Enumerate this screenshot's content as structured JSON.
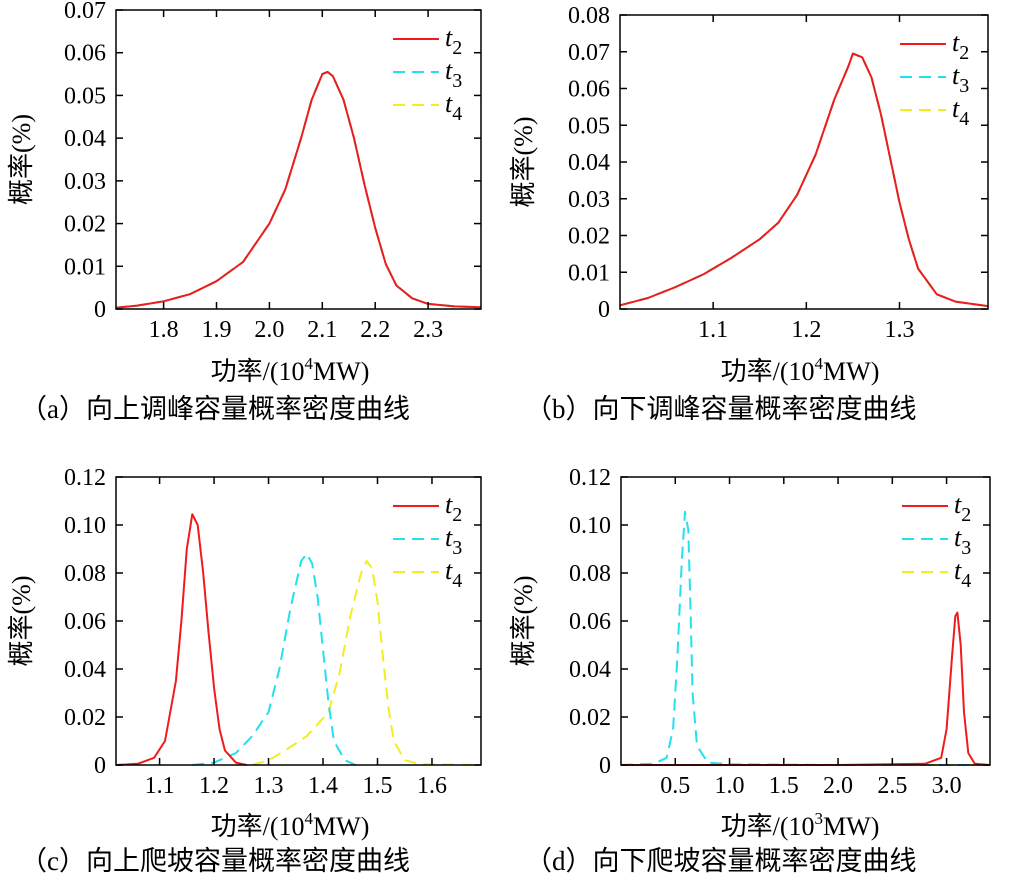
{
  "colors": {
    "t2": "#ee1c1c",
    "t3": "#22e0ee",
    "t4": "#f0ee22"
  },
  "chart_data": [
    {
      "type": "line",
      "title": "",
      "caption": "（a）向上调峰容量概率密度曲线",
      "xlabel": "功率/(10",
      "xlabel_sup": "4",
      "xlabel_end": "MW)",
      "ylabel": "概率(%)",
      "xlim": [
        1.71,
        2.4
      ],
      "ylim": [
        0,
        0.07
      ],
      "xticks": [
        1.8,
        1.9,
        2.0,
        2.1,
        2.2,
        2.3
      ],
      "xtick_labels": [
        "1.8",
        "1.9",
        "2.0",
        "2.1",
        "2.2",
        "2.3"
      ],
      "yticks": [
        0,
        0.01,
        0.02,
        0.03,
        0.04,
        0.05,
        0.06,
        0.07
      ],
      "ytick_labels": [
        "0",
        "0.01",
        "0.02",
        "0.03",
        "0.04",
        "0.05",
        "0.06",
        "0.07"
      ],
      "legend": [
        "t2",
        "t3",
        "t4"
      ],
      "series": [
        {
          "name": "t4",
          "points": [
            [
              1.71,
              0.0003
            ],
            [
              1.75,
              0.0008
            ],
            [
              1.8,
              0.0018
            ],
            [
              1.85,
              0.0035
            ],
            [
              1.9,
              0.0065
            ],
            [
              1.95,
              0.011
            ],
            [
              2.0,
              0.02
            ],
            [
              2.03,
              0.028
            ],
            [
              2.06,
              0.04
            ],
            [
              2.08,
              0.049
            ],
            [
              2.1,
              0.055
            ],
            [
              2.11,
              0.0555
            ],
            [
              2.12,
              0.0545
            ],
            [
              2.14,
              0.049
            ],
            [
              2.16,
              0.04
            ],
            [
              2.18,
              0.029
            ],
            [
              2.2,
              0.019
            ],
            [
              2.22,
              0.0105
            ],
            [
              2.24,
              0.0055
            ],
            [
              2.27,
              0.0025
            ],
            [
              2.3,
              0.0012
            ],
            [
              2.35,
              0.0006
            ],
            [
              2.4,
              0.0004
            ]
          ]
        },
        {
          "name": "t3",
          "points": [
            [
              1.71,
              0.0003
            ],
            [
              1.75,
              0.0008
            ],
            [
              1.8,
              0.0018
            ],
            [
              1.85,
              0.0035
            ],
            [
              1.9,
              0.0065
            ],
            [
              1.95,
              0.011
            ],
            [
              2.0,
              0.02
            ],
            [
              2.03,
              0.028
            ],
            [
              2.06,
              0.04
            ],
            [
              2.08,
              0.049
            ],
            [
              2.1,
              0.055
            ],
            [
              2.11,
              0.0555
            ],
            [
              2.12,
              0.0545
            ],
            [
              2.14,
              0.049
            ],
            [
              2.16,
              0.04
            ],
            [
              2.18,
              0.029
            ],
            [
              2.2,
              0.019
            ],
            [
              2.22,
              0.0105
            ],
            [
              2.24,
              0.0055
            ],
            [
              2.27,
              0.0025
            ],
            [
              2.3,
              0.0012
            ],
            [
              2.35,
              0.0006
            ],
            [
              2.4,
              0.0004
            ]
          ]
        },
        {
          "name": "t2",
          "points": [
            [
              1.71,
              0.0003
            ],
            [
              1.75,
              0.0008
            ],
            [
              1.8,
              0.0018
            ],
            [
              1.85,
              0.0035
            ],
            [
              1.9,
              0.0065
            ],
            [
              1.95,
              0.011
            ],
            [
              2.0,
              0.02
            ],
            [
              2.03,
              0.028
            ],
            [
              2.06,
              0.04
            ],
            [
              2.08,
              0.049
            ],
            [
              2.1,
              0.055
            ],
            [
              2.11,
              0.0555
            ],
            [
              2.12,
              0.0545
            ],
            [
              2.14,
              0.049
            ],
            [
              2.16,
              0.04
            ],
            [
              2.18,
              0.029
            ],
            [
              2.2,
              0.019
            ],
            [
              2.22,
              0.0105
            ],
            [
              2.24,
              0.0055
            ],
            [
              2.27,
              0.0025
            ],
            [
              2.3,
              0.0012
            ],
            [
              2.35,
              0.0006
            ],
            [
              2.4,
              0.0004
            ]
          ]
        }
      ]
    },
    {
      "type": "line",
      "title": "",
      "caption": "（b）向下调峰容量概率密度曲线",
      "xlabel": "功率/(10",
      "xlabel_sup": "4",
      "xlabel_end": "MW)",
      "ylabel": "概率(%)",
      "xlim": [
        1.0,
        1.395
      ],
      "ylim": [
        0,
        0.08
      ],
      "xticks": [
        1.1,
        1.2,
        1.3
      ],
      "xtick_labels": [
        "1.1",
        "1.2",
        "1.3"
      ],
      "yticks": [
        0,
        0.01,
        0.02,
        0.03,
        0.04,
        0.05,
        0.06,
        0.07,
        0.08
      ],
      "ytick_labels": [
        "0",
        "0.01",
        "0.02",
        "0.03",
        "0.04",
        "0.05",
        "0.06",
        "0.07",
        "0.08"
      ],
      "legend": [
        "t2",
        "t3",
        "t4"
      ],
      "series": [
        {
          "name": "t4",
          "points": [
            [
              1.0,
              0.001
            ],
            [
              1.03,
              0.003
            ],
            [
              1.06,
              0.006
            ],
            [
              1.09,
              0.0095
            ],
            [
              1.12,
              0.014
            ],
            [
              1.15,
              0.019
            ],
            [
              1.17,
              0.0235
            ],
            [
              1.19,
              0.031
            ],
            [
              1.21,
              0.042
            ],
            [
              1.23,
              0.057
            ],
            [
              1.245,
              0.066
            ],
            [
              1.25,
              0.0695
            ],
            [
              1.26,
              0.0685
            ],
            [
              1.27,
              0.063
            ],
            [
              1.28,
              0.053
            ],
            [
              1.29,
              0.041
            ],
            [
              1.3,
              0.029
            ],
            [
              1.31,
              0.019
            ],
            [
              1.32,
              0.011
            ],
            [
              1.34,
              0.004
            ],
            [
              1.36,
              0.002
            ],
            [
              1.395,
              0.0008
            ]
          ]
        },
        {
          "name": "t3",
          "points": [
            [
              1.0,
              0.001
            ],
            [
              1.03,
              0.003
            ],
            [
              1.06,
              0.006
            ],
            [
              1.09,
              0.0095
            ],
            [
              1.12,
              0.014
            ],
            [
              1.15,
              0.019
            ],
            [
              1.17,
              0.0235
            ],
            [
              1.19,
              0.031
            ],
            [
              1.21,
              0.042
            ],
            [
              1.23,
              0.057
            ],
            [
              1.245,
              0.066
            ],
            [
              1.25,
              0.0695
            ],
            [
              1.26,
              0.0685
            ],
            [
              1.27,
              0.063
            ],
            [
              1.28,
              0.053
            ],
            [
              1.29,
              0.041
            ],
            [
              1.3,
              0.029
            ],
            [
              1.31,
              0.019
            ],
            [
              1.32,
              0.011
            ],
            [
              1.34,
              0.004
            ],
            [
              1.36,
              0.002
            ],
            [
              1.395,
              0.0008
            ]
          ]
        },
        {
          "name": "t2",
          "points": [
            [
              1.0,
              0.001
            ],
            [
              1.03,
              0.003
            ],
            [
              1.06,
              0.006
            ],
            [
              1.09,
              0.0095
            ],
            [
              1.12,
              0.014
            ],
            [
              1.15,
              0.019
            ],
            [
              1.17,
              0.0235
            ],
            [
              1.19,
              0.031
            ],
            [
              1.21,
              0.042
            ],
            [
              1.23,
              0.057
            ],
            [
              1.245,
              0.066
            ],
            [
              1.25,
              0.0695
            ],
            [
              1.26,
              0.0685
            ],
            [
              1.27,
              0.063
            ],
            [
              1.28,
              0.053
            ],
            [
              1.29,
              0.041
            ],
            [
              1.3,
              0.029
            ],
            [
              1.31,
              0.019
            ],
            [
              1.32,
              0.011
            ],
            [
              1.34,
              0.004
            ],
            [
              1.36,
              0.002
            ],
            [
              1.395,
              0.0008
            ]
          ]
        }
      ]
    },
    {
      "type": "line",
      "title": "",
      "caption": "（c）向上爬坡容量概率密度曲线",
      "xlabel": "功率/(10",
      "xlabel_sup": "4",
      "xlabel_end": "MW)",
      "ylabel": "概率(%)",
      "xlim": [
        1.02,
        1.69
      ],
      "ylim": [
        0,
        0.12
      ],
      "xticks": [
        1.1,
        1.2,
        1.3,
        1.4,
        1.5,
        1.6
      ],
      "xtick_labels": [
        "1.1",
        "1.2",
        "1.3",
        "1.4",
        "1.5",
        "1.6"
      ],
      "yticks": [
        0,
        0.02,
        0.04,
        0.06,
        0.08,
        0.1,
        0.12
      ],
      "ytick_labels": [
        "0",
        "0.02",
        "0.04",
        "0.06",
        "0.08",
        "0.10",
        "0.12"
      ],
      "legend": [
        "t2",
        "t3",
        "t4"
      ],
      "series": [
        {
          "name": "t2",
          "points": [
            [
              1.02,
              0
            ],
            [
              1.06,
              0.0005
            ],
            [
              1.09,
              0.003
            ],
            [
              1.11,
              0.01
            ],
            [
              1.13,
              0.035
            ],
            [
              1.14,
              0.06
            ],
            [
              1.15,
              0.09
            ],
            [
              1.16,
              0.1045
            ],
            [
              1.17,
              0.1
            ],
            [
              1.18,
              0.08
            ],
            [
              1.19,
              0.055
            ],
            [
              1.2,
              0.032
            ],
            [
              1.21,
              0.015
            ],
            [
              1.22,
              0.006
            ],
            [
              1.24,
              0.001
            ],
            [
              1.26,
              0
            ]
          ]
        },
        {
          "name": "t3",
          "points": [
            [
              1.16,
              0
            ],
            [
              1.2,
              0.001
            ],
            [
              1.24,
              0.005
            ],
            [
              1.27,
              0.012
            ],
            [
              1.3,
              0.022
            ],
            [
              1.32,
              0.04
            ],
            [
              1.34,
              0.065
            ],
            [
              1.36,
              0.085
            ],
            [
              1.37,
              0.088
            ],
            [
              1.38,
              0.084
            ],
            [
              1.39,
              0.07
            ],
            [
              1.4,
              0.048
            ],
            [
              1.41,
              0.026
            ],
            [
              1.42,
              0.01
            ],
            [
              1.44,
              0.002
            ],
            [
              1.46,
              0
            ]
          ]
        },
        {
          "name": "t4",
          "points": [
            [
              1.27,
              0
            ],
            [
              1.3,
              0.002
            ],
            [
              1.33,
              0.006
            ],
            [
              1.37,
              0.012
            ],
            [
              1.41,
              0.022
            ],
            [
              1.43,
              0.038
            ],
            [
              1.45,
              0.062
            ],
            [
              1.47,
              0.08
            ],
            [
              1.48,
              0.085
            ],
            [
              1.49,
              0.082
            ],
            [
              1.5,
              0.068
            ],
            [
              1.51,
              0.045
            ],
            [
              1.52,
              0.024
            ],
            [
              1.53,
              0.01
            ],
            [
              1.55,
              0.002
            ],
            [
              1.58,
              0.0003
            ],
            [
              1.69,
              0
            ]
          ]
        }
      ]
    },
    {
      "type": "line",
      "title": "",
      "caption": "（d）向下爬坡容量概率密度曲线",
      "xlabel": "功率/(10",
      "xlabel_sup": "3",
      "xlabel_end": "MW)",
      "ylabel": "概率(%)",
      "xlim": [
        0,
        3.4
      ],
      "ylim": [
        0,
        0.12
      ],
      "xticks": [
        0.5,
        1.0,
        1.5,
        2.0,
        2.5,
        3.0
      ],
      "xtick_labels": [
        "0.5",
        "1.0",
        "1.5",
        "2.0",
        "2.5",
        "3.0"
      ],
      "yticks": [
        0,
        0.02,
        0.04,
        0.06,
        0.08,
        0.1,
        0.12
      ],
      "ytick_labels": [
        "0",
        "0.02",
        "0.04",
        "0.06",
        "0.08",
        "0.10",
        "0.12"
      ],
      "legend": [
        "t2",
        "t3",
        "t4"
      ],
      "series": [
        {
          "name": "t2",
          "points": [
            [
              0,
              0
            ],
            [
              2.0,
              0
            ],
            [
              2.8,
              0.0005
            ],
            [
              2.95,
              0.003
            ],
            [
              3.0,
              0.015
            ],
            [
              3.05,
              0.045
            ],
            [
              3.08,
              0.062
            ],
            [
              3.1,
              0.0635
            ],
            [
              3.13,
              0.05
            ],
            [
              3.16,
              0.022
            ],
            [
              3.2,
              0.005
            ],
            [
              3.26,
              0.0005
            ],
            [
              3.4,
              0
            ]
          ]
        },
        {
          "name": "t3",
          "points": [
            [
              0,
              0
            ],
            [
              0.3,
              0.0005
            ],
            [
              0.42,
              0.003
            ],
            [
              0.48,
              0.015
            ],
            [
              0.52,
              0.045
            ],
            [
              0.56,
              0.085
            ],
            [
              0.59,
              0.1055
            ],
            [
              0.62,
              0.098
            ],
            [
              0.64,
              0.065
            ],
            [
              0.66,
              0.03
            ],
            [
              0.7,
              0.008
            ],
            [
              0.8,
              0.001
            ],
            [
              1.0,
              0.0003
            ],
            [
              2.0,
              0
            ],
            [
              3.4,
              0
            ]
          ]
        },
        {
          "name": "t4",
          "points": [
            [
              0,
              0
            ],
            [
              3.4,
              0
            ]
          ]
        }
      ]
    }
  ]
}
